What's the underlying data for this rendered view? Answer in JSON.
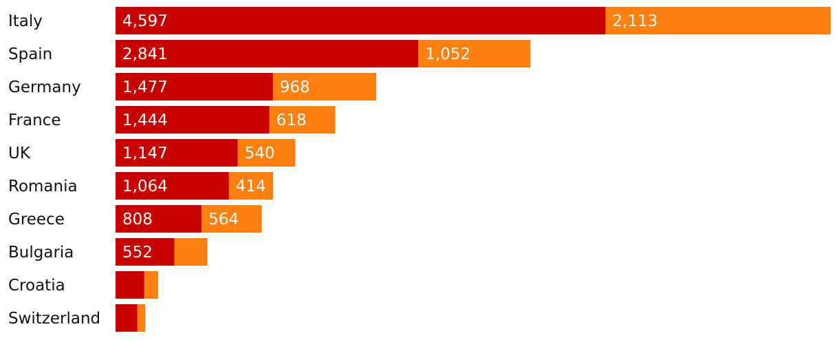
{
  "chart_data": {
    "type": "bar",
    "orientation": "horizontal",
    "stacked": true,
    "categories": [
      "Italy",
      "Spain",
      "Germany",
      "France",
      "UK",
      "Romania",
      "Greece",
      "Bulgaria",
      "Croatia",
      "Switzerland"
    ],
    "series": [
      {
        "color": "#c70000",
        "values": [
          4597,
          2841,
          1477,
          1444,
          1147,
          1064,
          808,
          552,
          270,
          205
        ],
        "value_labels": [
          "4,597",
          "2,841",
          "1,477",
          "1,444",
          "1,147",
          "1,064",
          "808",
          "552",
          "",
          ""
        ]
      },
      {
        "color": "#ff7f0f",
        "values": [
          2113,
          1052,
          968,
          618,
          540,
          414,
          564,
          310,
          130,
          75
        ],
        "value_labels": [
          "2,113",
          "1,052",
          "968",
          "618",
          "540",
          "414",
          "564",
          "",
          "",
          ""
        ]
      }
    ],
    "xlim": [
      0,
      6710
    ],
    "grid": false,
    "legend": "none"
  }
}
